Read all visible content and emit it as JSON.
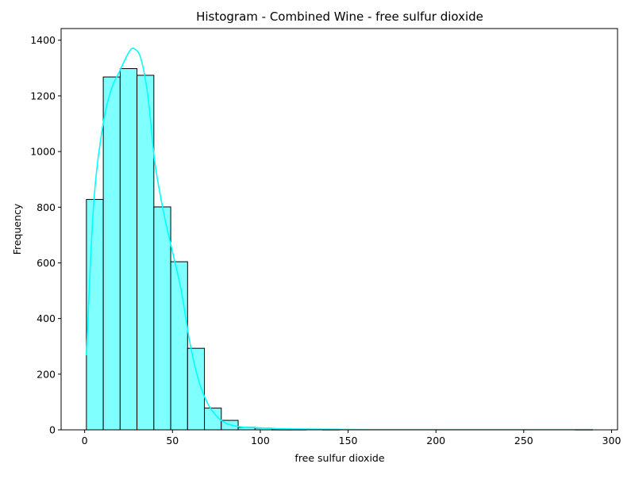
{
  "chart_data": {
    "type": "bar",
    "title": "Histogram - Combined Wine - free sulfur dioxide",
    "xlabel": "free sulfur dioxide",
    "ylabel": "Frequency",
    "xlim": [
      -13.4,
      303.4
    ],
    "ylim": [
      0,
      1442
    ],
    "xticks": [
      0,
      50,
      100,
      150,
      200,
      250,
      300
    ],
    "yticks": [
      0,
      200,
      400,
      600,
      800,
      1000,
      1200,
      1400
    ],
    "grid": false,
    "legend": "none",
    "bin_edges": [
      1,
      10.6,
      20.2,
      29.8,
      39.4,
      49,
      58.6,
      68.2,
      77.8,
      87.4,
      97,
      106.6,
      116.2,
      125.8,
      135.4,
      145,
      154.6,
      164.2,
      173.8,
      183.4,
      193,
      202.6,
      212.2,
      221.8,
      231.4,
      241,
      250.6,
      260.2,
      269.8,
      279.4,
      289
    ],
    "counts": [
      828,
      1268,
      1298,
      1274,
      801,
      604,
      293,
      78,
      34,
      9,
      6,
      1,
      1,
      0,
      1,
      0,
      0,
      0,
      0,
      0,
      0,
      0,
      0,
      0,
      0,
      0,
      0,
      0,
      0,
      1
    ],
    "kde": {
      "x": [
        1,
        5,
        10,
        15,
        20,
        25,
        28,
        32,
        36,
        40,
        45,
        50,
        55,
        60,
        65,
        70,
        75,
        80,
        85,
        90,
        95,
        100,
        110,
        120,
        140,
        160,
        200,
        250,
        289
      ],
      "y": [
        268,
        800,
        1080,
        1220,
        1290,
        1355,
        1370,
        1335,
        1200,
        960,
        780,
        640,
        500,
        310,
        175,
        95,
        50,
        25,
        15,
        10,
        8,
        7,
        4,
        3,
        2,
        1,
        1,
        1,
        1
      ]
    },
    "colors": {
      "bar_fill": "#80ffff",
      "bar_edge": "#000000",
      "kde_line": "#00ffff"
    }
  }
}
